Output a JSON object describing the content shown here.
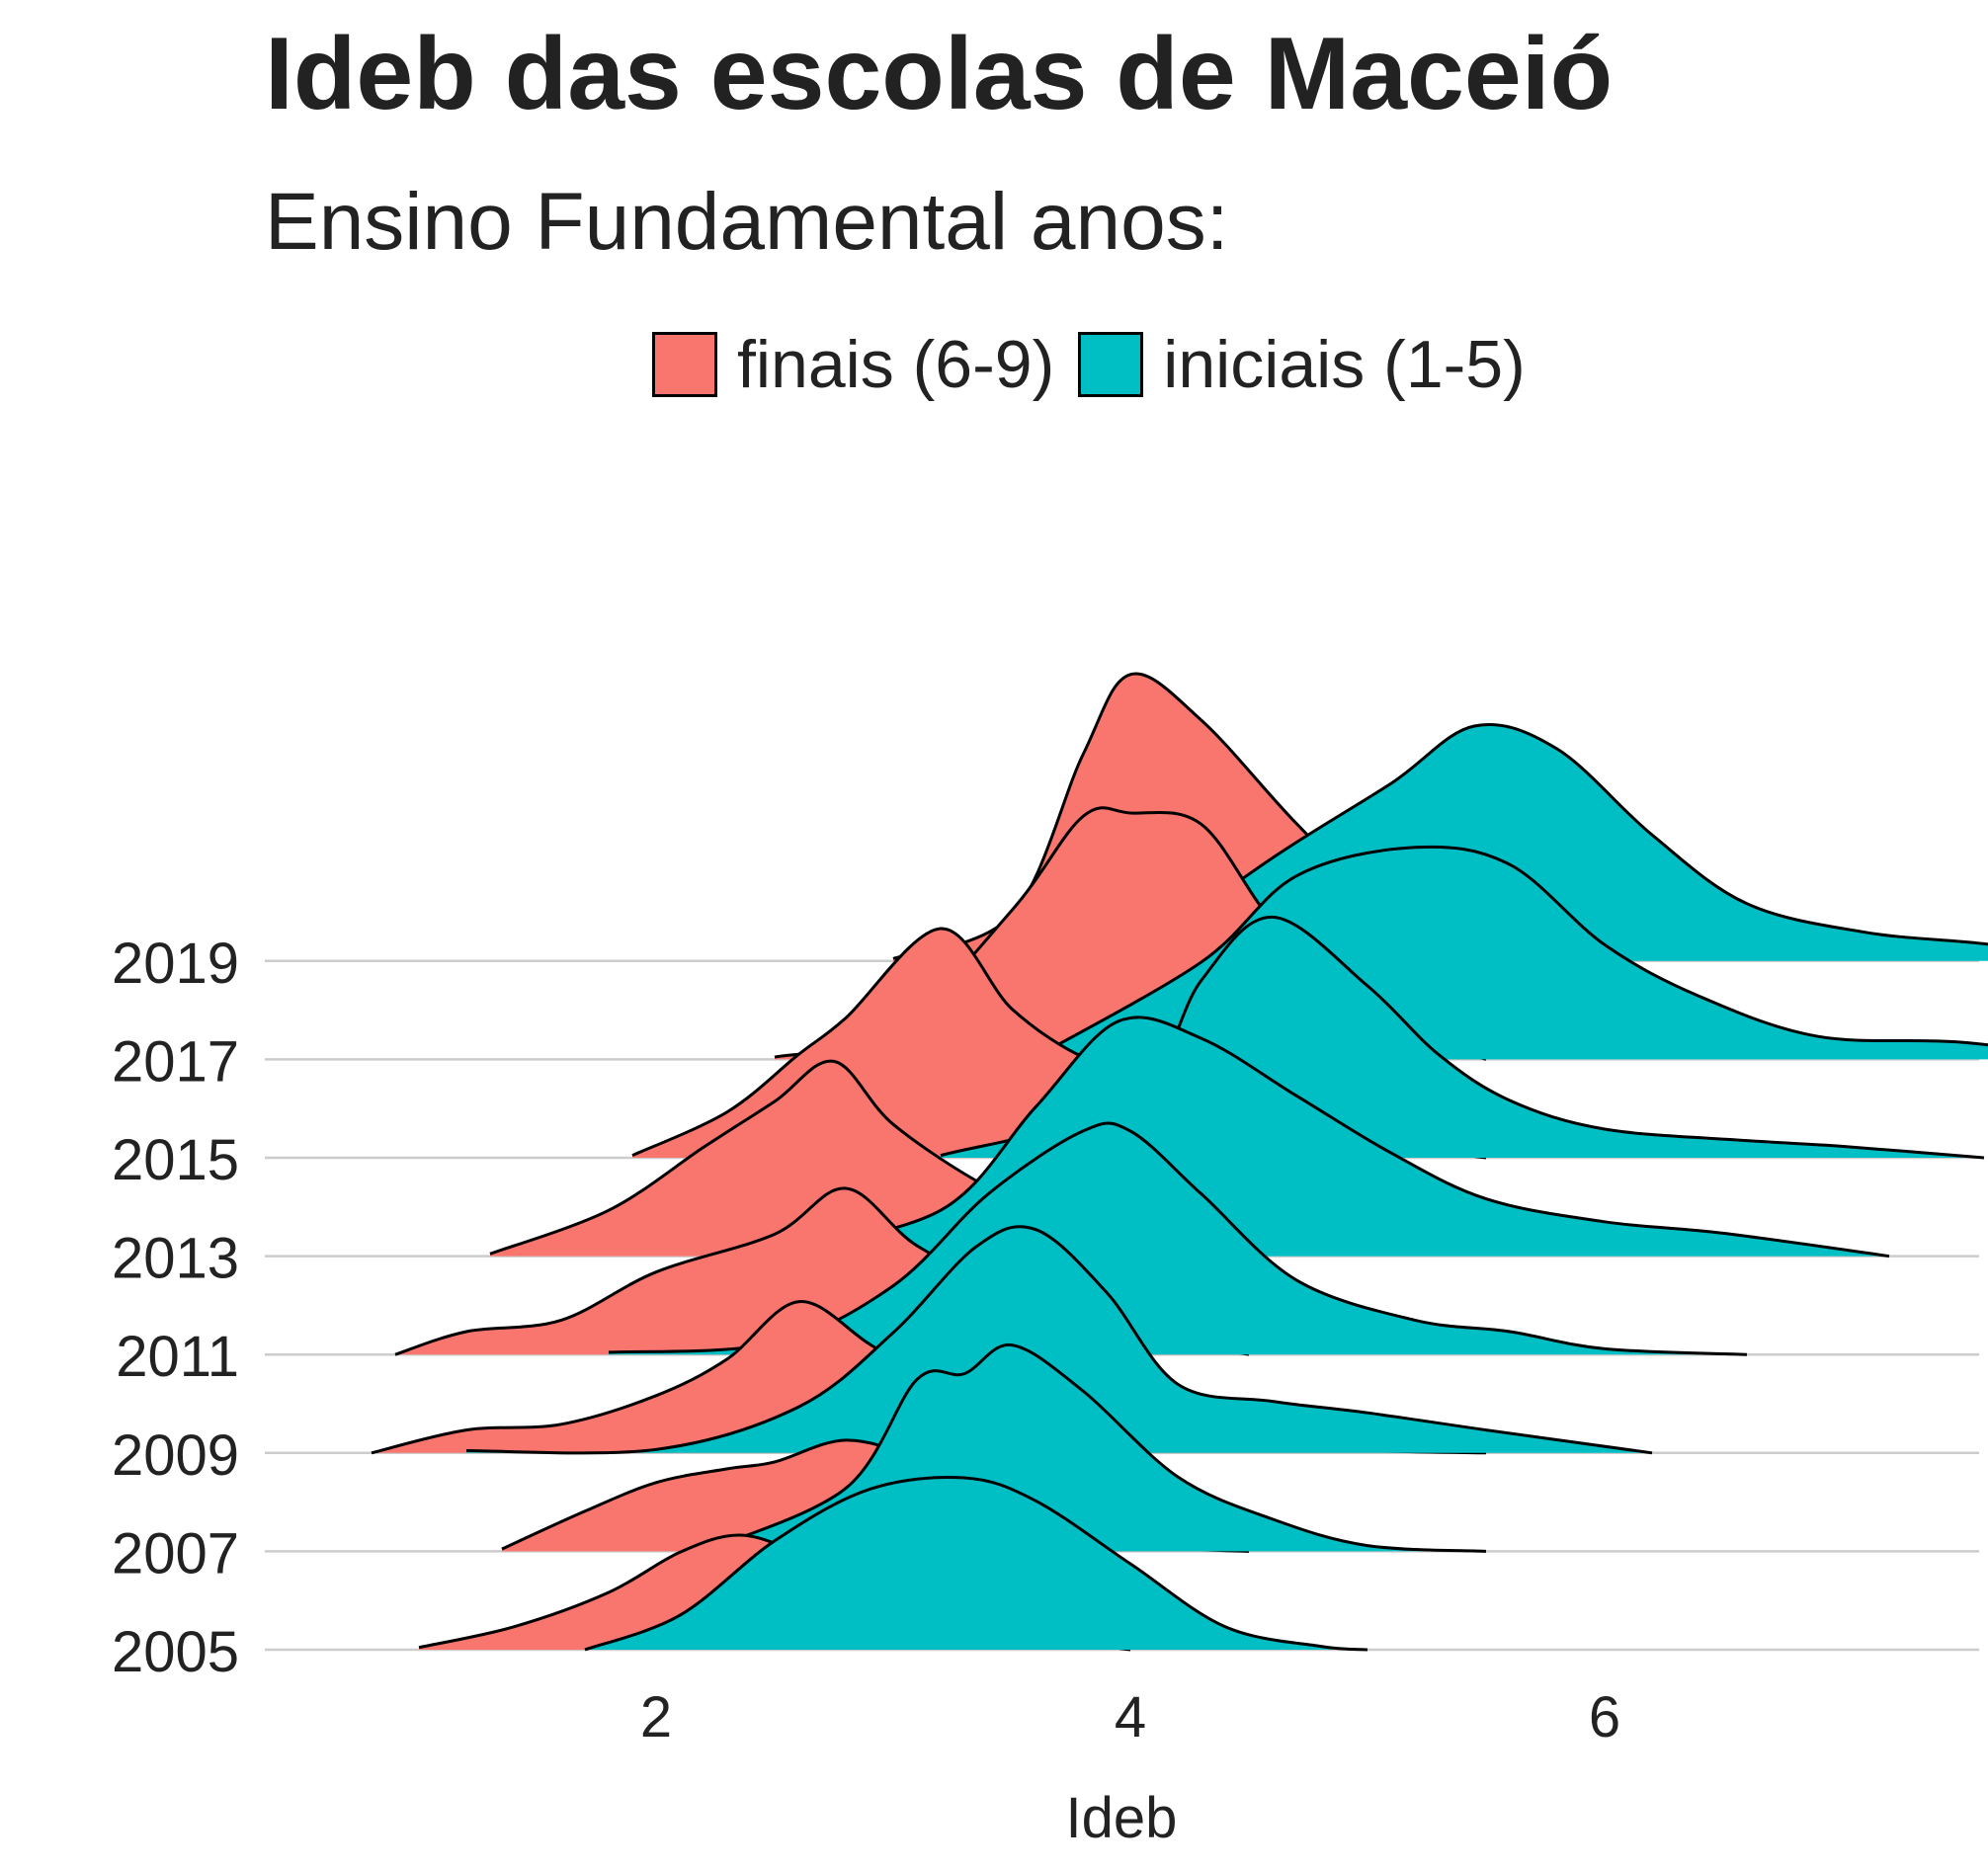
{
  "chart_data": {
    "type": "ridgeline",
    "title": "Ideb das escolas de Maceió",
    "subtitle": "Ensino Fundamental anos:",
    "xlabel": "Ideb",
    "ylabel": "",
    "xlim": [
      0.6,
      7.7
    ],
    "x_ticks": [
      2,
      4,
      6
    ],
    "y_categories": [
      "2005",
      "2007",
      "2009",
      "2011",
      "2013",
      "2015",
      "2017",
      "2019"
    ],
    "legend_position": "top",
    "grid": "horizontal baselines only",
    "colors": {
      "finais (6-9)": "#F8766D",
      "iniciais (1-5)": "#00BFC4"
    },
    "series": [
      {
        "name": "finais (6-9)",
        "ridges": [
          {
            "year": "2005",
            "range": [
              1.0,
              4.0
            ],
            "points": [
              [
                1.0,
                0.02
              ],
              [
                1.4,
                0.2
              ],
              [
                1.8,
                0.5
              ],
              [
                2.1,
                0.85
              ],
              [
                2.35,
                1.0
              ],
              [
                2.6,
                0.85
              ],
              [
                2.9,
                0.6
              ],
              [
                3.2,
                0.35
              ],
              [
                3.6,
                0.12
              ],
              [
                4.0,
                0.0
              ]
            ]
          },
          {
            "year": "2007",
            "range": [
              1.35,
              4.5
            ],
            "points": [
              [
                1.35,
                0.02
              ],
              [
                1.7,
                0.35
              ],
              [
                2.0,
                0.6
              ],
              [
                2.3,
                0.72
              ],
              [
                2.5,
                0.78
              ],
              [
                2.8,
                0.97
              ],
              [
                3.1,
                0.8
              ],
              [
                3.4,
                0.45
              ],
              [
                3.8,
                0.15
              ],
              [
                4.2,
                0.03
              ],
              [
                4.5,
                0.0
              ]
            ]
          },
          {
            "year": "2009",
            "range": [
              0.8,
              5.5
            ],
            "points": [
              [
                0.8,
                0.0
              ],
              [
                1.2,
                0.2
              ],
              [
                1.6,
                0.25
              ],
              [
                2.0,
                0.5
              ],
              [
                2.3,
                0.82
              ],
              [
                2.6,
                1.32
              ],
              [
                2.9,
                0.95
              ],
              [
                3.2,
                0.55
              ],
              [
                3.6,
                0.25
              ],
              [
                4.2,
                0.08
              ],
              [
                5.0,
                0.02
              ],
              [
                5.5,
                0.0
              ]
            ]
          },
          {
            "year": "2011",
            "range": [
              0.9,
              4.5
            ],
            "points": [
              [
                0.9,
                0.0
              ],
              [
                1.2,
                0.2
              ],
              [
                1.6,
                0.3
              ],
              [
                2.0,
                0.72
              ],
              [
                2.5,
                1.05
              ],
              [
                2.8,
                1.45
              ],
              [
                3.1,
                0.95
              ],
              [
                3.5,
                0.55
              ],
              [
                4.0,
                0.2
              ],
              [
                4.5,
                0.0
              ]
            ]
          },
          {
            "year": "2013",
            "range": [
              1.3,
              4.5
            ],
            "points": [
              [
                1.3,
                0.02
              ],
              [
                1.8,
                0.4
              ],
              [
                2.2,
                0.95
              ],
              [
                2.5,
                1.35
              ],
              [
                2.75,
                1.7
              ],
              [
                3.0,
                1.15
              ],
              [
                3.4,
                0.6
              ],
              [
                3.8,
                0.25
              ],
              [
                4.2,
                0.05
              ],
              [
                4.5,
                0.0
              ]
            ]
          },
          {
            "year": "2015",
            "range": [
              1.9,
              5.5
            ],
            "points": [
              [
                1.9,
                0.02
              ],
              [
                2.3,
                0.4
              ],
              [
                2.6,
                0.9
              ],
              [
                2.8,
                1.22
              ],
              [
                3.2,
                2.0
              ],
              [
                3.5,
                1.3
              ],
              [
                3.8,
                0.88
              ],
              [
                4.0,
                0.85
              ],
              [
                4.3,
                0.5
              ],
              [
                4.8,
                0.2
              ],
              [
                5.5,
                0.0
              ]
            ]
          },
          {
            "year": "2017",
            "range": [
              2.5,
              5.5
            ],
            "points": [
              [
                2.5,
                0.02
              ],
              [
                3.0,
                0.25
              ],
              [
                3.5,
                1.3
              ],
              [
                3.8,
                2.12
              ],
              [
                4.0,
                2.15
              ],
              [
                4.3,
                2.05
              ],
              [
                4.6,
                1.2
              ],
              [
                5.0,
                0.35
              ],
              [
                5.5,
                0.0
              ]
            ]
          },
          {
            "year": "2019",
            "range": [
              3.0,
              5.5
            ],
            "points": [
              [
                3.0,
                0.02
              ],
              [
                3.5,
                0.4
              ],
              [
                3.8,
                1.8
              ],
              [
                4.0,
                2.5
              ],
              [
                4.3,
                2.1
              ],
              [
                4.7,
                1.2
              ],
              [
                5.1,
                0.4
              ],
              [
                5.5,
                0.0
              ]
            ]
          }
        ]
      },
      {
        "name": "iniciais (1-5)",
        "ridges": [
          {
            "year": "2005",
            "range": [
              1.7,
              5.0
            ],
            "points": [
              [
                1.7,
                0.0
              ],
              [
                2.1,
                0.3
              ],
              [
                2.5,
                0.95
              ],
              [
                2.9,
                1.4
              ],
              [
                3.3,
                1.5
              ],
              [
                3.6,
                1.3
              ],
              [
                4.0,
                0.75
              ],
              [
                4.4,
                0.2
              ],
              [
                4.8,
                0.03
              ],
              [
                5.0,
                0.0
              ]
            ]
          },
          {
            "year": "2007",
            "range": [
              2.2,
              5.5
            ],
            "points": [
              [
                2.2,
                0.0
              ],
              [
                2.8,
                0.55
              ],
              [
                3.1,
                1.5
              ],
              [
                3.3,
                1.55
              ],
              [
                3.5,
                1.8
              ],
              [
                3.8,
                1.4
              ],
              [
                4.2,
                0.65
              ],
              [
                4.6,
                0.28
              ],
              [
                5.0,
                0.05
              ],
              [
                5.5,
                0.0
              ]
            ]
          },
          {
            "year": "2009",
            "range": [
              1.2,
              6.2
            ],
            "points": [
              [
                1.2,
                0.02
              ],
              [
                2.0,
                0.03
              ],
              [
                2.6,
                0.4
              ],
              [
                3.0,
                1.05
              ],
              [
                3.35,
                1.8
              ],
              [
                3.6,
                1.95
              ],
              [
                3.9,
                1.4
              ],
              [
                4.2,
                0.6
              ],
              [
                4.6,
                0.45
              ],
              [
                5.0,
                0.35
              ],
              [
                5.5,
                0.2
              ],
              [
                6.2,
                0.0
              ]
            ]
          },
          {
            "year": "2011",
            "range": [
              1.8,
              6.6
            ],
            "points": [
              [
                1.8,
                0.02
              ],
              [
                2.5,
                0.1
              ],
              [
                3.0,
                0.6
              ],
              [
                3.4,
                1.4
              ],
              [
                3.8,
                1.95
              ],
              [
                4.0,
                1.95
              ],
              [
                4.3,
                1.4
              ],
              [
                4.7,
                0.65
              ],
              [
                5.2,
                0.3
              ],
              [
                5.6,
                0.2
              ],
              [
                6.0,
                0.05
              ],
              [
                6.6,
                0.0
              ]
            ]
          },
          {
            "year": "2013",
            "range": [
              2.5,
              7.2
            ],
            "points": [
              [
                2.5,
                0.02
              ],
              [
                3.2,
                0.4
              ],
              [
                3.6,
                1.3
              ],
              [
                3.95,
                2.05
              ],
              [
                4.3,
                1.9
              ],
              [
                4.7,
                1.4
              ],
              [
                5.1,
                0.9
              ],
              [
                5.5,
                0.5
              ],
              [
                6.0,
                0.3
              ],
              [
                6.5,
                0.2
              ],
              [
                7.2,
                0.0
              ]
            ]
          },
          {
            "year": "2015",
            "range": [
              3.2,
              7.6
            ],
            "points": [
              [
                3.2,
                0.02
              ],
              [
                4.0,
                0.5
              ],
              [
                4.3,
                1.55
              ],
              [
                4.6,
                2.1
              ],
              [
                5.0,
                1.5
              ],
              [
                5.3,
                0.9
              ],
              [
                5.6,
                0.5
              ],
              [
                6.0,
                0.25
              ],
              [
                6.6,
                0.15
              ],
              [
                7.0,
                0.1
              ],
              [
                7.6,
                0.0
              ]
            ]
          },
          {
            "year": "2017",
            "range": [
              3.6,
              8.1
            ],
            "points": [
              [
                3.6,
                0.02
              ],
              [
                4.3,
                0.85
              ],
              [
                4.7,
                1.6
              ],
              [
                5.2,
                1.85
              ],
              [
                5.6,
                1.7
              ],
              [
                6.0,
                1.0
              ],
              [
                6.4,
                0.55
              ],
              [
                6.9,
                0.2
              ],
              [
                7.5,
                0.15
              ],
              [
                8.1,
                0.0
              ]
            ]
          },
          {
            "year": "2019",
            "range": [
              4.0,
              8.1
            ],
            "points": [
              [
                4.0,
                0.02
              ],
              [
                4.6,
                0.9
              ],
              [
                5.1,
                1.55
              ],
              [
                5.45,
                2.05
              ],
              [
                5.8,
                1.85
              ],
              [
                6.2,
                1.1
              ],
              [
                6.6,
                0.5
              ],
              [
                7.1,
                0.25
              ],
              [
                7.6,
                0.15
              ],
              [
                8.1,
                0.0
              ]
            ]
          }
        ]
      }
    ]
  },
  "legend": {
    "items": [
      {
        "label": "finais (6-9)",
        "color": "#F8766D"
      },
      {
        "label": "iniciais (1-5)",
        "color": "#00BFC4"
      }
    ]
  }
}
